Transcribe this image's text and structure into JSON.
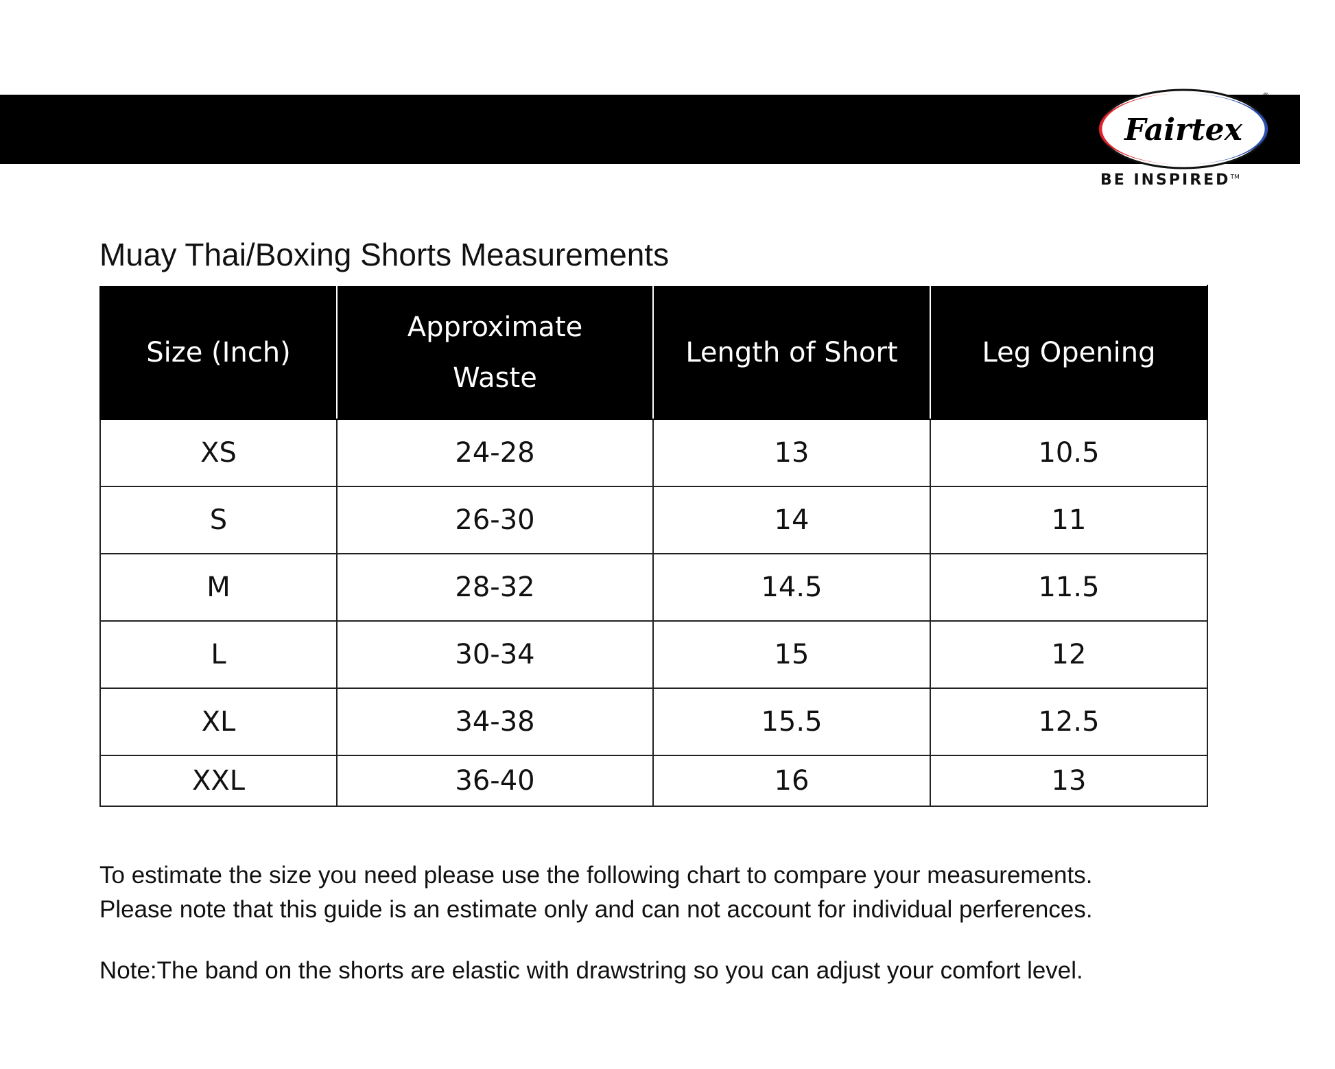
{
  "header": {
    "brand": "Fairtex",
    "tagline": "BE INSPIRED",
    "trademark": "TM",
    "colors": {
      "band": "#000000",
      "logo_red": "#e0232b",
      "logo_blue": "#2a4fae"
    }
  },
  "title": "Muay Thai/Boxing Shorts Measurements",
  "table": {
    "headers": [
      "Size (Inch)",
      "Approximate Waste",
      "Length of Short",
      "Leg Opening"
    ],
    "rows": [
      [
        "XS",
        "24-28",
        "13",
        "10.5"
      ],
      [
        "S",
        "26-30",
        "14",
        "11"
      ],
      [
        "M",
        "28-32",
        "14.5",
        "11.5"
      ],
      [
        "L",
        "30-34",
        "15",
        "12"
      ],
      [
        "XL",
        "34-38",
        "15.5",
        "12.5"
      ],
      [
        "XXL",
        "36-40",
        "16",
        "13"
      ]
    ]
  },
  "notes": {
    "line1": "To estimate the size you need please use the following chart to compare your measurements.",
    "line2": "Please note that this guide is an estimate only and can not account for individual perferences.",
    "line3": "Note:The band on the shorts are elastic with drawstring so you can adjust your comfort level."
  }
}
